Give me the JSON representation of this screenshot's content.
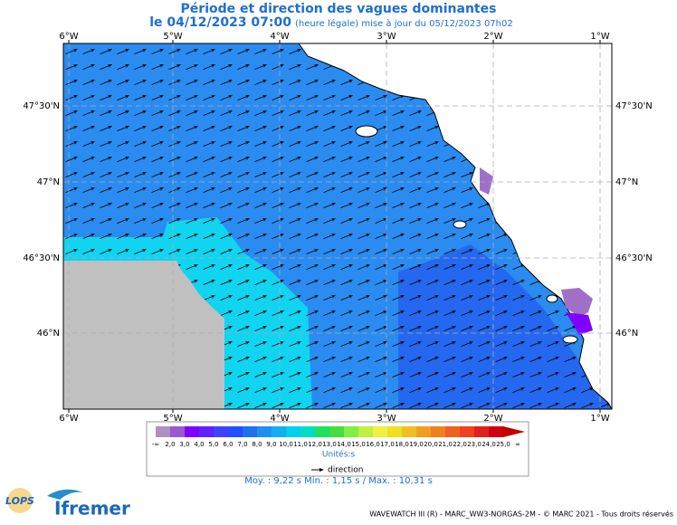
{
  "header": {
    "title": "Période et direction des vagues dominantes",
    "date": "le 04/12/2023 07:00",
    "update": "(heure légale) mise à jour du 05/12/2023 07h02"
  },
  "map": {
    "lon_labels": [
      "6°W",
      "5°W",
      "4°W",
      "3°W",
      "2°W",
      "1°W"
    ],
    "lat_labels": [
      "47°30'N",
      "47°N",
      "46°30'N",
      "46°N"
    ]
  },
  "legend": {
    "labels": [
      "-∞",
      "2,0",
      "3,0",
      "4,0",
      "5,0",
      "6,0",
      "7,0",
      "8,0",
      "9,0",
      "10,0",
      "11,0",
      "12,0",
      "13,0",
      "14,0",
      "15,0",
      "16,0",
      "17,0",
      "18,0",
      "19,0",
      "20,0",
      "21,0",
      "22,0",
      "23,0",
      "24,0",
      "25,0",
      "∞"
    ],
    "colors": [
      "#b090c0",
      "#9b59d0",
      "#8000ff",
      "#6020ff",
      "#4040ff",
      "#2050ff",
      "#2070f0",
      "#1e90f0",
      "#10b0f0",
      "#00d0f0",
      "#00e0c0",
      "#20e060",
      "#40e040",
      "#80f040",
      "#c0f040",
      "#f0f040",
      "#f0e020",
      "#f0c020",
      "#f0a020",
      "#f08020",
      "#f06020",
      "#f04020",
      "#e02020",
      "#d00010",
      "#c00000"
    ],
    "unit": "Unités:s",
    "direction": "direction",
    "stats": "Moy. : 9,22 s   Min. : 1,15 s / Max. : 10,31 s"
  },
  "footer": {
    "logo_left": "LOPS",
    "logo_right": "Ifremer",
    "credit": "WAVEWATCH III (R) - MARC_WW3-NORGAS-2M - © MARC 2021 - Tous droits réservés"
  }
}
